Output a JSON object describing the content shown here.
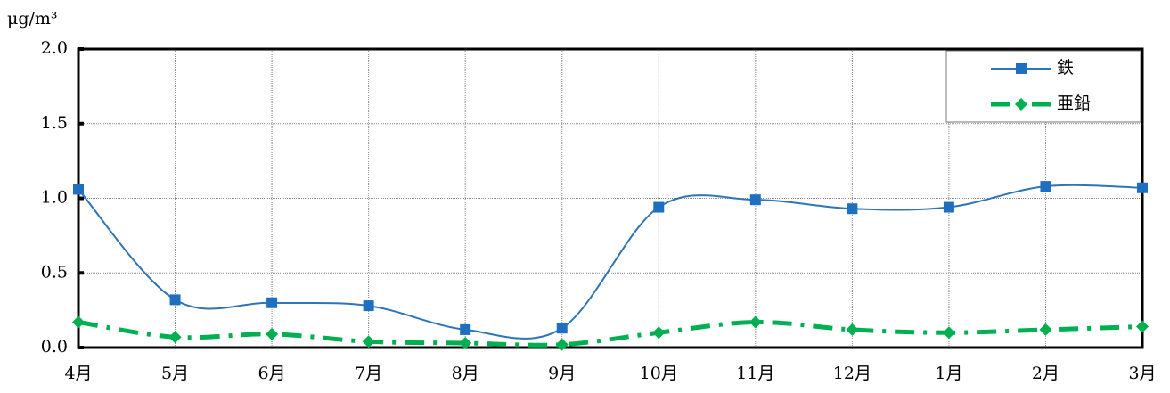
{
  "chart_data": {
    "type": "line",
    "y_axis_label": "μg/m³",
    "categories": [
      "4月",
      "5月",
      "6月",
      "7月",
      "8月",
      "9月",
      "10月",
      "11月",
      "12月",
      "1月",
      "2月",
      "3月"
    ],
    "series": [
      {
        "name": "鉄",
        "color": "#2e75b6",
        "marker": "square",
        "values": [
          1.06,
          0.32,
          0.3,
          0.28,
          0.12,
          0.13,
          0.94,
          0.99,
          0.93,
          0.94,
          1.08,
          1.07
        ]
      },
      {
        "name": "亜鉛",
        "color": "#00b050",
        "marker": "diamond",
        "dash": "dashdot",
        "values": [
          0.17,
          0.07,
          0.09,
          0.04,
          0.03,
          0.02,
          0.1,
          0.17,
          0.12,
          0.1,
          0.12,
          0.14
        ]
      }
    ],
    "ylim": [
      0,
      2
    ],
    "yticks": [
      {
        "value": 0,
        "label": "0.0"
      },
      0.5,
      {
        "value": 1,
        "label": "1.0"
      },
      1.5,
      {
        "value": 2,
        "label": "2.0"
      }
    ],
    "grid": true,
    "legend": "top-right"
  }
}
